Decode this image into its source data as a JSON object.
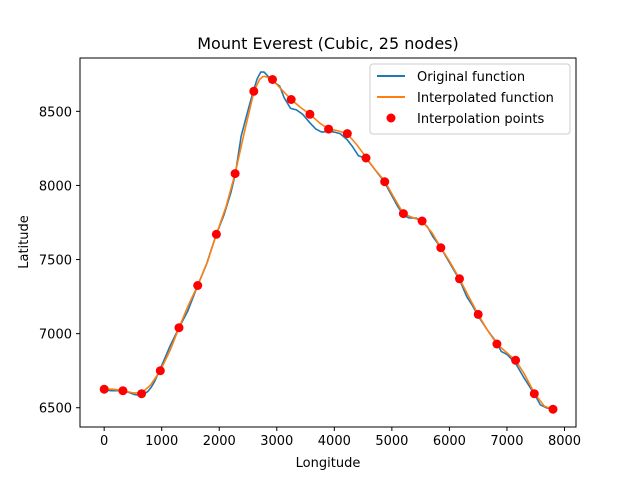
{
  "chart_data": {
    "type": "line",
    "title": "Mount Everest (Cubic, 25 nodes)",
    "xlabel": "Longitude",
    "ylabel": "Latitude",
    "xlim": [
      -420,
      8200
    ],
    "ylim": [
      6370,
      8860
    ],
    "xticks": [
      0,
      1000,
      2000,
      3000,
      4000,
      5000,
      6000,
      7000,
      8000
    ],
    "yticks": [
      6500,
      7000,
      7500,
      8000,
      8500
    ],
    "grid": false,
    "legend_position": "top-right",
    "series": [
      {
        "name": "Original function",
        "kind": "line",
        "color": "#1f77b4",
        "x": [
          0,
          120,
          240,
          330,
          420,
          520,
          600,
          650,
          700,
          760,
          820,
          880,
          960,
          1050,
          1150,
          1300,
          1450,
          1620,
          1780,
          1940,
          2080,
          2200,
          2280,
          2380,
          2480,
          2580,
          2660,
          2720,
          2780,
          2840,
          2910,
          2980,
          3050,
          3130,
          3240,
          3340,
          3450,
          3580,
          3680,
          3780,
          3900,
          4000,
          4100,
          4220,
          4320,
          4420,
          4560,
          4700,
          4860,
          5000,
          5100,
          5200,
          5300,
          5420,
          5520,
          5620,
          5720,
          5850,
          6000,
          6180,
          6300,
          6400,
          6500,
          6650,
          6820,
          6900,
          7000,
          7150,
          7300,
          7480,
          7580,
          7680,
          7790
        ],
        "y": [
          6620,
          6615,
          6615,
          6612,
          6605,
          6590,
          6585,
          6585,
          6595,
          6610,
          6640,
          6680,
          6750,
          6830,
          6920,
          7040,
          7150,
          7320,
          7470,
          7660,
          7800,
          7950,
          8080,
          8330,
          8480,
          8620,
          8720,
          8765,
          8765,
          8740,
          8710,
          8690,
          8670,
          8590,
          8520,
          8510,
          8480,
          8420,
          8380,
          8360,
          8365,
          8360,
          8350,
          8310,
          8260,
          8200,
          8180,
          8110,
          8030,
          7930,
          7860,
          7800,
          7780,
          7780,
          7760,
          7720,
          7650,
          7580,
          7480,
          7360,
          7250,
          7190,
          7120,
          7030,
          6940,
          6880,
          6860,
          6800,
          6700,
          6590,
          6520,
          6500,
          6490
        ]
      },
      {
        "name": "Interpolated function",
        "kind": "line",
        "color": "#ff7f0e",
        "x": [
          0,
          150,
          325,
          500,
          650,
          800,
          975,
          1150,
          1300,
          1450,
          1625,
          1800,
          1950,
          2120,
          2275,
          2450,
          2600,
          2700,
          2760,
          2800,
          2925,
          3050,
          3250,
          3400,
          3575,
          3750,
          3900,
          4050,
          4225,
          4400,
          4550,
          4700,
          4875,
          5050,
          5200,
          5350,
          5525,
          5700,
          5850,
          6000,
          6175,
          6350,
          6500,
          6650,
          6825,
          7000,
          7150,
          7300,
          7475,
          7650,
          7800
        ],
        "y": [
          6625,
          6625,
          6615,
          6600,
          6600,
          6650,
          6750,
          6890,
          7040,
          7180,
          7325,
          7490,
          7670,
          7860,
          8080,
          8380,
          8630,
          8715,
          8735,
          8735,
          8715,
          8660,
          8580,
          8530,
          8480,
          8420,
          8380,
          8370,
          8350,
          8270,
          8190,
          8110,
          8030,
          7910,
          7810,
          7785,
          7760,
          7680,
          7580,
          7490,
          7370,
          7240,
          7130,
          7030,
          6930,
          6870,
          6820,
          6730,
          6600,
          6510,
          6490
        ]
      },
      {
        "name": "Interpolation points",
        "kind": "scatter",
        "color": "#ff0000",
        "x": [
          0,
          325,
          650,
          975,
          1300,
          1625,
          1950,
          2275,
          2600,
          2925,
          3250,
          3575,
          3900,
          4225,
          4550,
          4875,
          5200,
          5525,
          5850,
          6175,
          6500,
          6825,
          7150,
          7475,
          7800
        ],
        "y": [
          6625,
          6615,
          6595,
          6750,
          7040,
          7325,
          7670,
          8080,
          8635,
          8715,
          8580,
          8480,
          8380,
          8350,
          8185,
          8025,
          7810,
          7760,
          7580,
          7370,
          7130,
          6930,
          6820,
          6595,
          6490
        ]
      }
    ]
  }
}
